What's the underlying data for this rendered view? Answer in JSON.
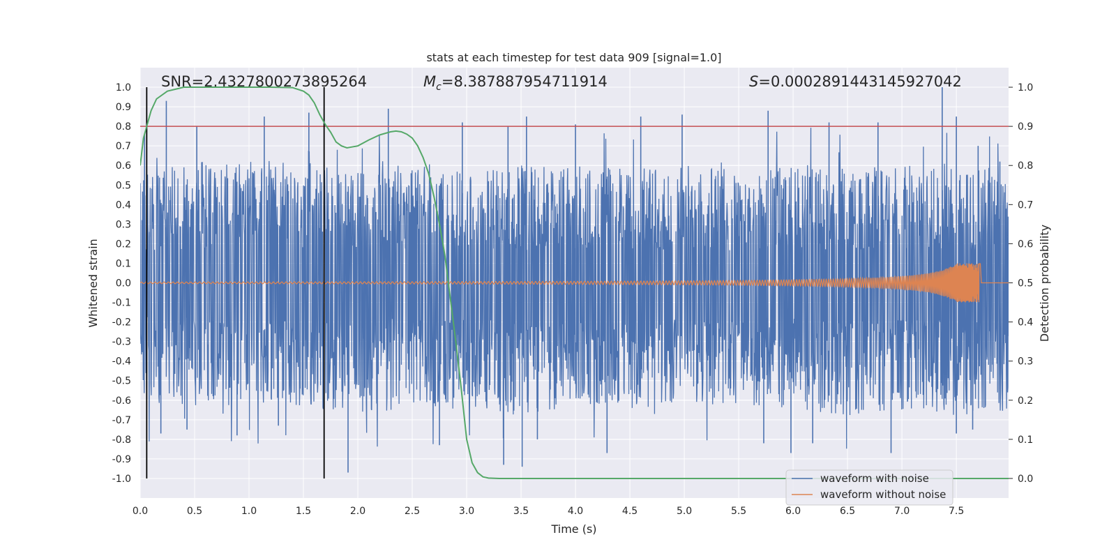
{
  "chart_data": {
    "type": "line",
    "title": "stats at each timestep for test data 909 [signal=1.0]",
    "xlabel": "Time (s)",
    "ylabel": "Whitened strain",
    "y2label": "Detection probability",
    "xlim": [
      0.0,
      7.98
    ],
    "ylim": [
      -1.1,
      1.1
    ],
    "y2lim": [
      -0.05,
      1.05
    ],
    "xticks": [
      "0.0",
      "0.5",
      "1.0",
      "1.5",
      "2.0",
      "2.5",
      "3.0",
      "3.5",
      "4.0",
      "4.5",
      "5.0",
      "5.5",
      "6.0",
      "6.5",
      "7.0",
      "7.5"
    ],
    "yticks": [
      "1.0",
      "0.9",
      "0.8",
      "0.7",
      "0.6",
      "0.5",
      "0.4",
      "0.3",
      "0.2",
      "0.1",
      "0.0",
      "-0.1",
      "-0.2",
      "-0.3",
      "-0.4",
      "-0.5",
      "-0.6",
      "-0.7",
      "-0.8",
      "-0.9",
      "-1.0"
    ],
    "y2ticks": [
      "1.0",
      "0.9",
      "0.8",
      "0.7",
      "0.6",
      "0.5",
      "0.4",
      "0.3",
      "0.2",
      "0.1",
      "0.0"
    ],
    "annotations": {
      "snr": {
        "label": "SNR",
        "value": "2.4327800273895264"
      },
      "mc": {
        "label": "M",
        "sub": "c",
        "value": "8.387887954711914"
      },
      "s": {
        "label": "S",
        "value": "0.0002891443145927042"
      }
    },
    "threshold": {
      "axis": "y2",
      "value": 0.9,
      "color": "#c44e52"
    },
    "vlines": [
      0.06,
      1.69
    ],
    "legend": {
      "placement": "lower-right",
      "entries": [
        {
          "name": "waveform with noise",
          "color": "#4c72b0"
        },
        {
          "name": "waveform without noise",
          "color": "#dd8452"
        }
      ]
    },
    "series": [
      {
        "name": "waveform with noise",
        "color": "#4c72b0",
        "style": "dense noise",
        "envelope_upper": [
          [
            0.0,
            0.45
          ],
          [
            0.5,
            0.5
          ],
          [
            1.0,
            0.5
          ],
          [
            1.5,
            0.5
          ],
          [
            2.0,
            0.45
          ],
          [
            2.5,
            0.5
          ],
          [
            3.0,
            0.45
          ],
          [
            3.5,
            0.48
          ],
          [
            4.0,
            0.48
          ],
          [
            4.5,
            0.47
          ],
          [
            5.0,
            0.48
          ],
          [
            5.5,
            0.47
          ],
          [
            6.0,
            0.47
          ],
          [
            6.5,
            0.47
          ],
          [
            7.0,
            0.48
          ],
          [
            7.5,
            0.47
          ],
          [
            7.98,
            0.47
          ]
        ],
        "envelope_lower": [
          [
            0.0,
            -0.5
          ],
          [
            0.5,
            -0.5
          ],
          [
            1.0,
            -0.52
          ],
          [
            1.5,
            -0.5
          ],
          [
            2.0,
            -0.55
          ],
          [
            2.5,
            -0.5
          ],
          [
            3.0,
            -0.52
          ],
          [
            3.5,
            -0.55
          ],
          [
            4.0,
            -0.5
          ],
          [
            4.5,
            -0.52
          ],
          [
            5.0,
            -0.5
          ],
          [
            5.5,
            -0.5
          ],
          [
            6.0,
            -0.52
          ],
          [
            6.5,
            -0.55
          ],
          [
            7.0,
            -0.52
          ],
          [
            7.5,
            -0.55
          ],
          [
            7.98,
            -0.55
          ]
        ],
        "peaks": [
          [
            0.04,
            0.76
          ],
          [
            0.24,
            0.93
          ],
          [
            0.52,
            0.8
          ],
          [
            1.14,
            0.85
          ],
          [
            1.55,
            0.87
          ],
          [
            2.28,
            0.89
          ],
          [
            2.96,
            0.82
          ],
          [
            3.38,
            0.8
          ],
          [
            3.55,
            0.85
          ],
          [
            4.0,
            0.81
          ],
          [
            4.6,
            0.85
          ],
          [
            4.98,
            0.86
          ],
          [
            5.77,
            0.88
          ],
          [
            6.33,
            0.82
          ],
          [
            6.78,
            0.82
          ],
          [
            7.37,
            1.0
          ],
          [
            7.5,
            0.85
          ],
          [
            7.7,
            0.7
          ],
          [
            7.9,
            0.62
          ]
        ],
        "troughs": [
          [
            0.19,
            -0.77
          ],
          [
            0.43,
            -0.75
          ],
          [
            0.89,
            -0.78
          ],
          [
            1.27,
            -0.73
          ],
          [
            1.91,
            -0.97
          ],
          [
            2.75,
            -0.83
          ],
          [
            3.34,
            -0.93
          ],
          [
            3.51,
            -0.94
          ],
          [
            3.65,
            -0.8
          ],
          [
            4.29,
            -0.87
          ],
          [
            5.73,
            -0.82
          ],
          [
            5.98,
            -0.87
          ],
          [
            6.18,
            -0.82
          ],
          [
            6.9,
            -0.87
          ],
          [
            7.5,
            -0.77
          ],
          [
            7.65,
            -0.75
          ]
        ]
      },
      {
        "name": "waveform without noise",
        "color": "#dd8452",
        "style": "chirp",
        "t_start": 0.0,
        "t_merge": 7.71,
        "amplitude_start": 0.004,
        "amplitude_peak": 0.1
      },
      {
        "name": "detection probability",
        "axis": "y2",
        "color": "#55a868",
        "x": [
          0.0,
          0.03,
          0.06,
          0.1,
          0.15,
          0.25,
          0.4,
          0.6,
          0.8,
          1.0,
          1.2,
          1.4,
          1.5,
          1.55,
          1.6,
          1.65,
          1.7,
          1.75,
          1.8,
          1.85,
          1.9,
          2.0,
          2.1,
          2.2,
          2.3,
          2.35,
          2.4,
          2.45,
          2.5,
          2.55,
          2.6,
          2.65,
          2.7,
          2.75,
          2.8,
          2.85,
          2.9,
          2.95,
          3.0,
          3.05,
          3.1,
          3.15,
          3.2,
          3.3,
          3.5,
          4.0,
          5.0,
          6.0,
          7.0,
          7.98
        ],
        "y": [
          0.8,
          0.87,
          0.9,
          0.94,
          0.97,
          0.99,
          1.0,
          1.0,
          1.0,
          1.0,
          1.0,
          0.999,
          0.99,
          0.98,
          0.96,
          0.93,
          0.905,
          0.885,
          0.86,
          0.85,
          0.845,
          0.85,
          0.865,
          0.878,
          0.886,
          0.888,
          0.886,
          0.88,
          0.87,
          0.85,
          0.82,
          0.78,
          0.72,
          0.65,
          0.57,
          0.46,
          0.35,
          0.23,
          0.1,
          0.04,
          0.015,
          0.004,
          0.001,
          0.0,
          0.0,
          0.0,
          0.0,
          0.0,
          0.0,
          0.0
        ]
      }
    ]
  }
}
